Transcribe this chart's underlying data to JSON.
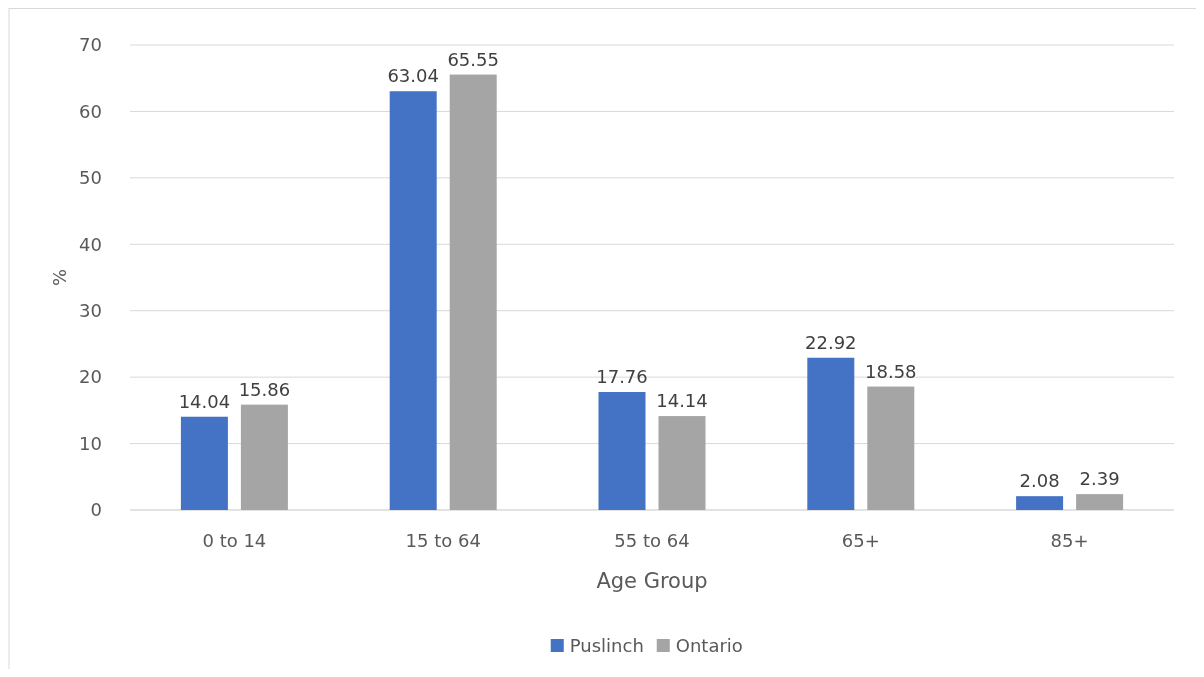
{
  "chart_data": {
    "type": "bar",
    "xlabel": "Age Group",
    "ylabel": "%",
    "categories": [
      "0 to 14",
      "15 to 64",
      "55 to 64",
      "65+",
      "85+"
    ],
    "series": [
      {
        "name": "Puslinch",
        "color": "#4472c4",
        "values": [
          14.04,
          63.04,
          17.76,
          22.92,
          2.08
        ]
      },
      {
        "name": "Ontario",
        "color": "#a5a5a5",
        "values": [
          15.86,
          65.55,
          14.14,
          18.58,
          2.39
        ]
      }
    ],
    "ylim": [
      0,
      70
    ],
    "yticks": [
      0,
      10,
      20,
      30,
      40,
      50,
      60,
      70
    ],
    "grid": "y",
    "legend": "bottom",
    "data_labels": true
  }
}
